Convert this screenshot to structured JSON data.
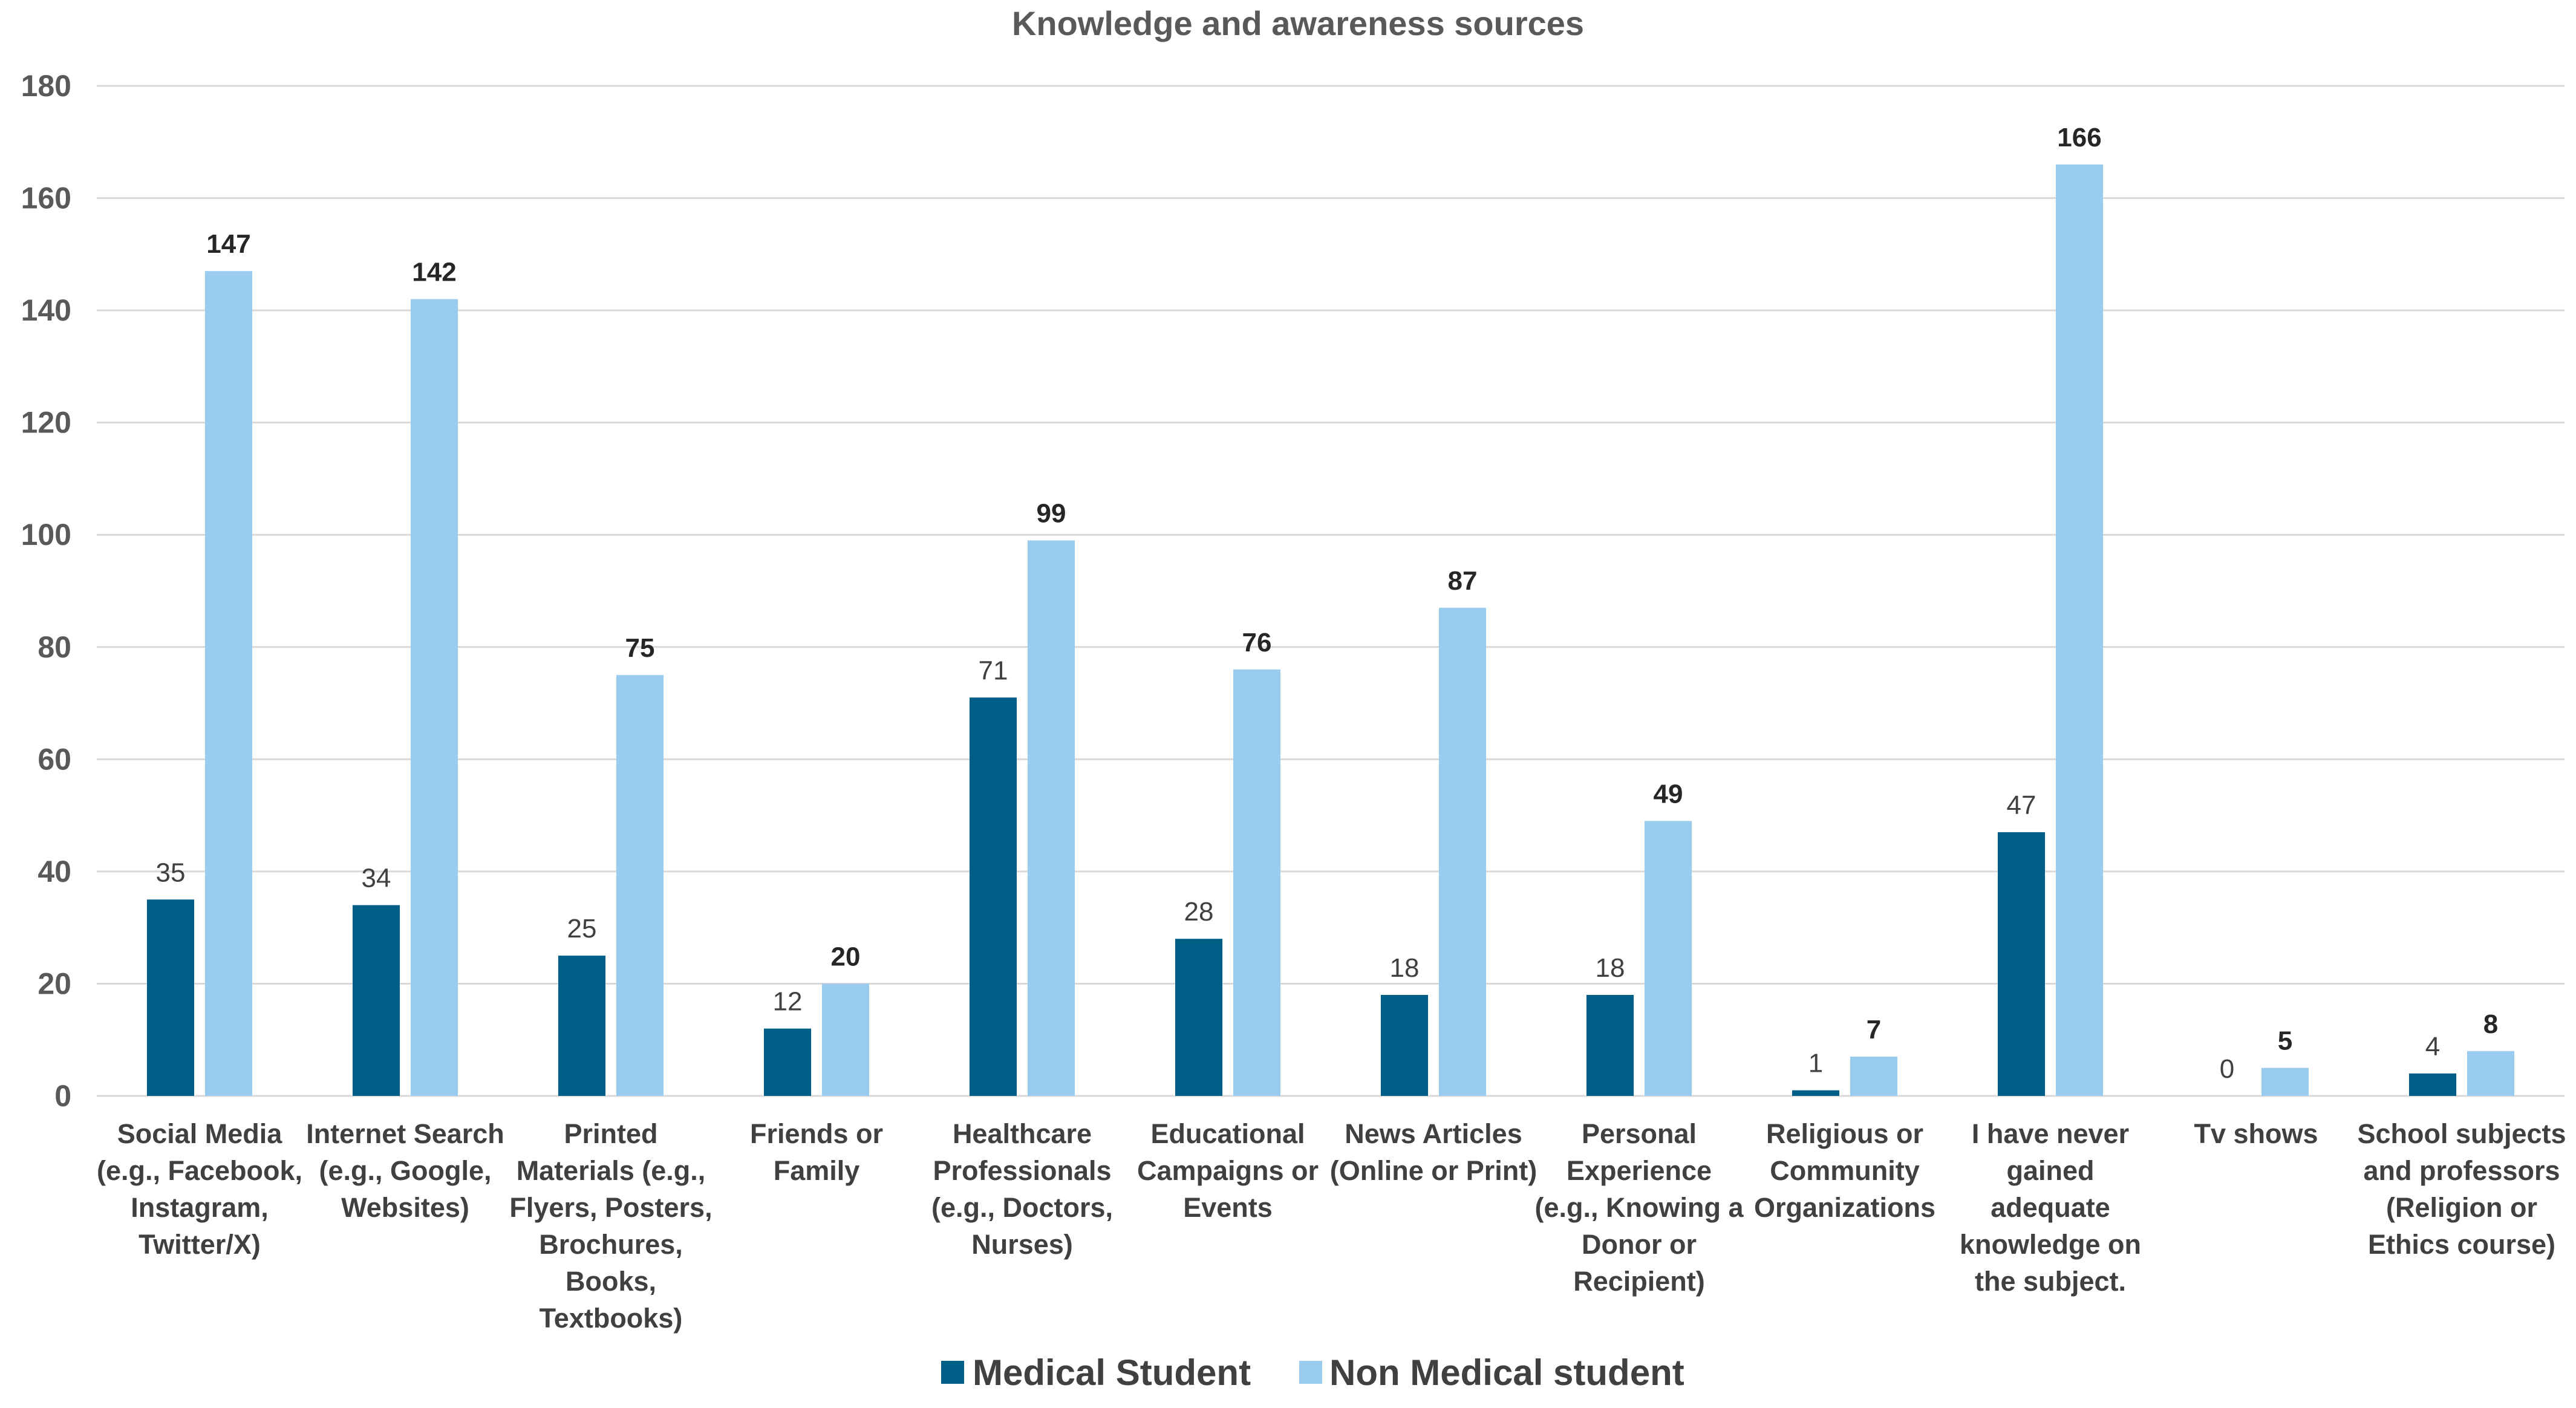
{
  "chart_data": {
    "type": "bar",
    "title": "Knowledge and awareness sources",
    "xlabel": "",
    "ylabel": "",
    "ylim": [
      0,
      180
    ],
    "yticks": [
      0,
      20,
      40,
      60,
      80,
      100,
      120,
      140,
      160,
      180
    ],
    "grid": true,
    "legend_position": "bottom",
    "categories": [
      [
        "Social Media",
        "(e.g., Facebook,",
        "Instagram,",
        "Twitter/X)"
      ],
      [
        "Internet Search",
        "(e.g., Google,",
        "Websites)"
      ],
      [
        "Printed",
        "Materials (e.g.,",
        "Flyers, Posters,",
        "Brochures,",
        "Books,",
        "Textbooks)"
      ],
      [
        "Friends or",
        "Family"
      ],
      [
        "Healthcare",
        "Professionals",
        "(e.g., Doctors,",
        "Nurses)"
      ],
      [
        "Educational",
        "Campaigns or",
        "Events"
      ],
      [
        "News Articles",
        "(Online or Print)"
      ],
      [
        "Personal",
        "Experience",
        "(e.g., Knowing a",
        "Donor or",
        "Recipient)"
      ],
      [
        "Religious or",
        "Community",
        "Organizations"
      ],
      [
        "I have never",
        "gained",
        "adequate",
        "knowledge on",
        "the subject."
      ],
      [
        "Tv shows"
      ],
      [
        "School subjects",
        "and professors",
        "(Religion or",
        "Ethics course)"
      ]
    ],
    "series": [
      {
        "name": "Medical Student",
        "color": "#005f87",
        "values": [
          35,
          34,
          25,
          12,
          71,
          28,
          18,
          18,
          1,
          47,
          0,
          4
        ]
      },
      {
        "name": "Non Medical student",
        "color": "#99ccee",
        "values": [
          147,
          142,
          75,
          20,
          99,
          76,
          87,
          49,
          7,
          166,
          5,
          8
        ]
      }
    ]
  }
}
